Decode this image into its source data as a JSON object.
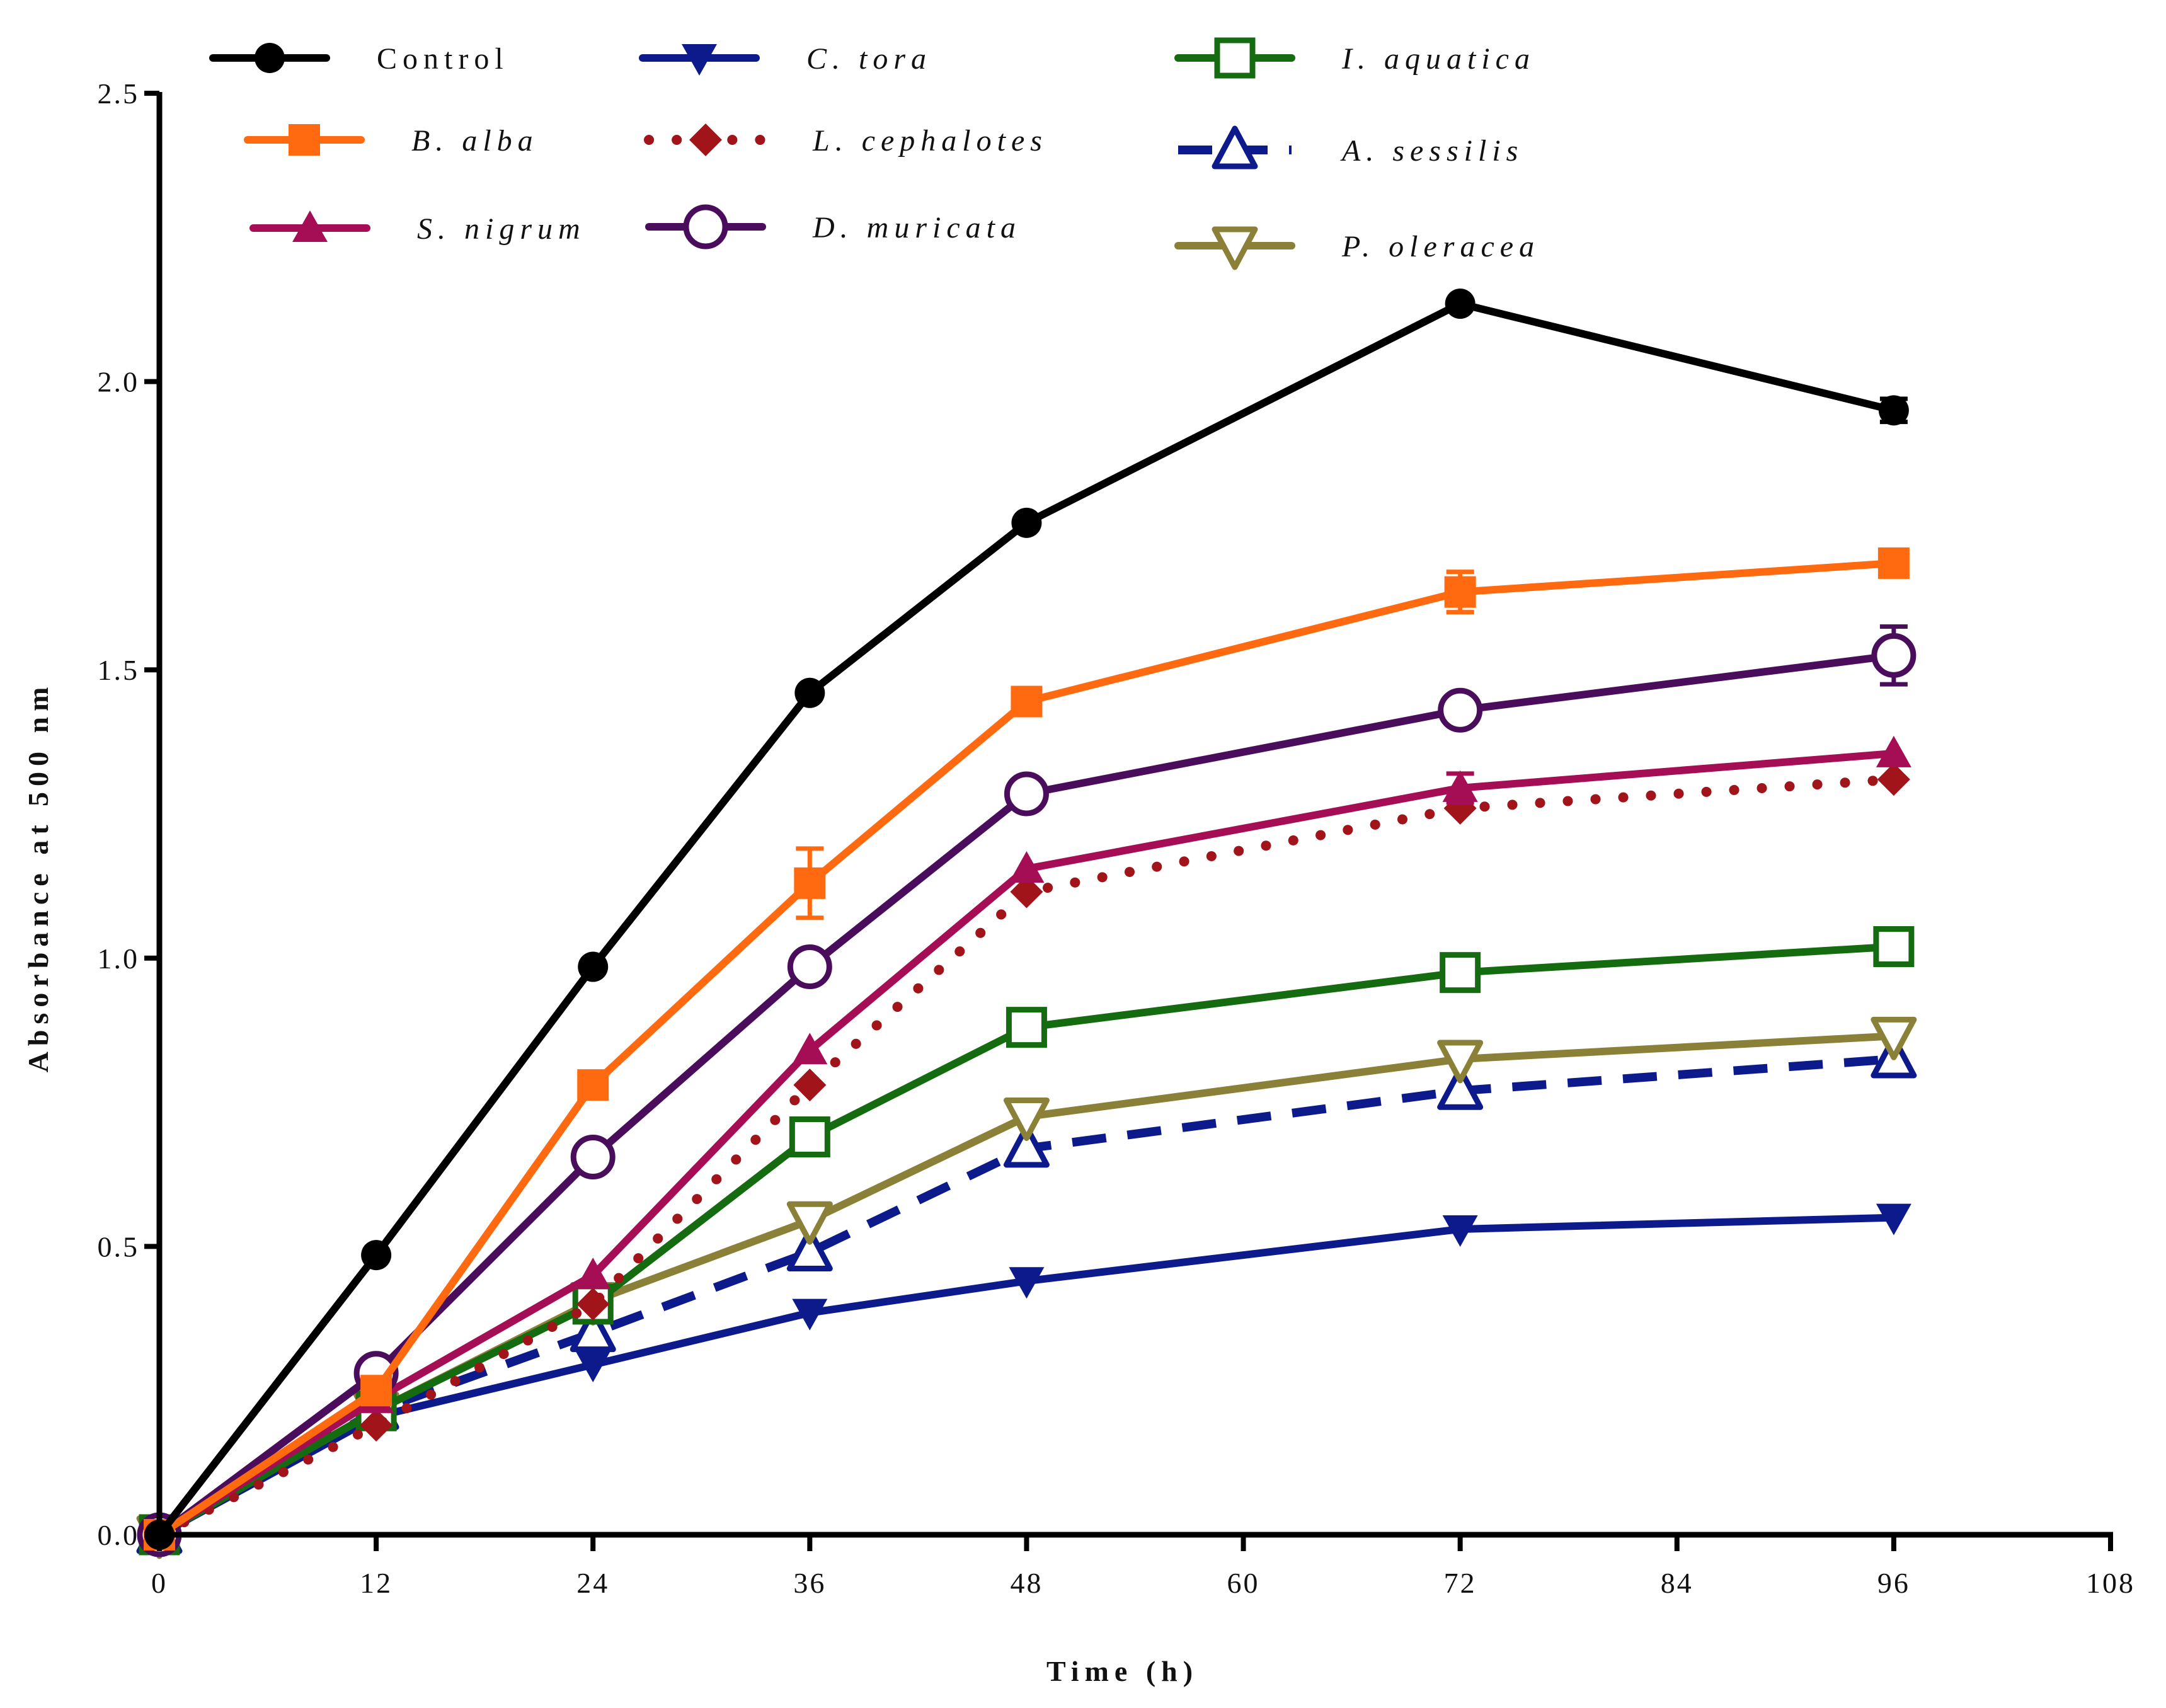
{
  "chart_data": {
    "type": "line",
    "title": "",
    "xlabel": "Time (h)",
    "ylabel": "Absorbance at 500 nm",
    "xlim": [
      0,
      108
    ],
    "ylim": [
      0,
      2.5
    ],
    "x_ticks": [
      0,
      12,
      24,
      36,
      48,
      60,
      72,
      84,
      96,
      108
    ],
    "x_tick_labels": [
      "0",
      "12",
      "24",
      "36",
      "48",
      "60",
      "72",
      "84",
      "96",
      "108"
    ],
    "y_ticks": [
      0,
      0.5,
      1,
      1.5,
      2,
      2.5
    ],
    "y_tick_labels": [
      "0.0",
      "0.5",
      "1.0",
      "1.5",
      "2.0",
      "2.5"
    ],
    "grid": false,
    "legend_position": "top",
    "x": [
      0,
      12,
      24,
      36,
      48,
      72,
      96
    ],
    "series": [
      {
        "name": "Control",
        "italic": false,
        "color": "#000000",
        "marker": "circle-filled",
        "dash": "solid",
        "values": [
          0.0,
          0.485,
          0.985,
          1.46,
          1.755,
          2.135,
          1.95
        ],
        "errors": [
          0,
          0,
          0,
          0,
          0,
          0,
          0.02
        ]
      },
      {
        "name": "B. alba",
        "italic": true,
        "color": "#ff6a10",
        "marker": "square-filled",
        "dash": "solid",
        "values": [
          0.0,
          0.25,
          0.78,
          1.13,
          1.445,
          1.635,
          1.685
        ],
        "errors": [
          0,
          0,
          0,
          0.06,
          0,
          0.035,
          0
        ]
      },
      {
        "name": "S. nigrum",
        "italic": true,
        "color": "#a50d55",
        "marker": "triangle-up-filled",
        "dash": "solid",
        "values": [
          0.0,
          0.235,
          0.45,
          0.84,
          1.155,
          1.295,
          1.355
        ],
        "errors": [
          0,
          0,
          0,
          0,
          0,
          0.025,
          0
        ]
      },
      {
        "name": "C. tora",
        "italic": true,
        "color": "#0d1a8c",
        "marker": "triangle-down-filled",
        "dash": "solid",
        "values": [
          0.0,
          0.205,
          0.295,
          0.385,
          0.44,
          0.53,
          0.55
        ],
        "errors": [
          0,
          0,
          0,
          0,
          0,
          0,
          0
        ]
      },
      {
        "name": "L. cephalotes",
        "italic": true,
        "color": "#a0141a",
        "marker": "diamond-filled",
        "dash": "dotted",
        "values": [
          0.0,
          0.19,
          0.4,
          0.78,
          1.115,
          1.26,
          1.31
        ],
        "errors": [
          0,
          0,
          0,
          0,
          0,
          0,
          0
        ]
      },
      {
        "name": "D. muricata",
        "italic": true,
        "color": "#4a0d5c",
        "marker": "circle-open",
        "dash": "solid",
        "values": [
          0.0,
          0.28,
          0.655,
          0.985,
          1.285,
          1.43,
          1.525
        ],
        "errors": [
          0,
          0,
          0,
          0,
          0,
          0.02,
          0.05
        ]
      },
      {
        "name": "I. aquatica",
        "italic": true,
        "color": "#156b10",
        "marker": "square-open",
        "dash": "solid",
        "values": [
          0.0,
          0.215,
          0.4,
          0.69,
          0.88,
          0.975,
          1.02
        ],
        "errors": [
          0,
          0,
          0,
          0,
          0,
          0,
          0.015
        ]
      },
      {
        "name": "A. sessilis",
        "italic": true,
        "color": "#0d1a8c",
        "marker": "triangle-up-open",
        "dash": "dashed",
        "values": [
          0.0,
          0.215,
          0.35,
          0.49,
          0.67,
          0.77,
          0.825
        ],
        "errors": [
          0,
          0,
          0,
          0,
          0,
          0,
          0
        ]
      },
      {
        "name": "P. oleracea",
        "italic": true,
        "color": "#8b8038",
        "marker": "triangle-down-open",
        "dash": "solid",
        "values": [
          0.0,
          0.215,
          0.405,
          0.545,
          0.725,
          0.825,
          0.865
        ],
        "errors": [
          0,
          0,
          0,
          0,
          0,
          0,
          0
        ]
      }
    ]
  }
}
